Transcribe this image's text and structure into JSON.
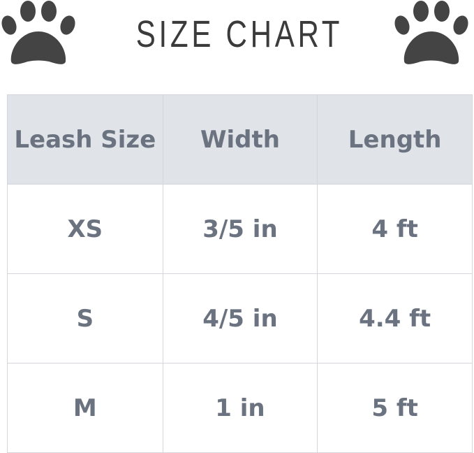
{
  "title": "SIZE CHART",
  "icon": "paw-print-icon",
  "colors": {
    "header_bg": "#e0e4e9",
    "text": "#6b7280",
    "title": "#3b3b3b"
  },
  "table": {
    "headers": [
      "Leash Size",
      "Width",
      "Length"
    ],
    "rows": [
      [
        "XS",
        "3/5 in",
        "4 ft"
      ],
      [
        "S",
        "4/5 in",
        "4.4 ft"
      ],
      [
        "M",
        "1 in",
        "5 ft"
      ]
    ]
  }
}
